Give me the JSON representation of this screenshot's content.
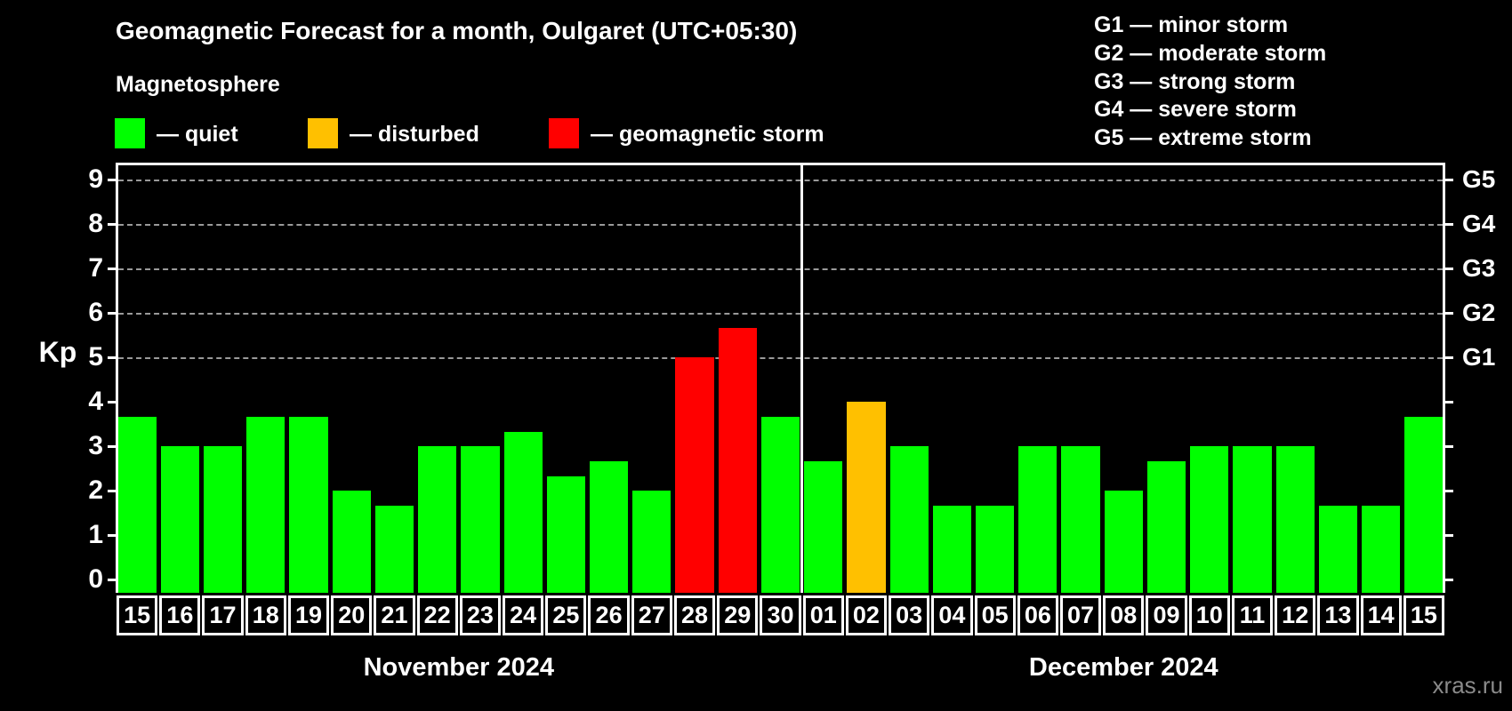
{
  "header": {
    "title": "Geomagnetic Forecast for a month, Oulgaret (UTC+05:30)",
    "subtitle": "Magnetosphere"
  },
  "legend": {
    "items": [
      {
        "name": "quiet",
        "label": "— quiet",
        "color": "#00ff00"
      },
      {
        "name": "disturbed",
        "label": "— disturbed",
        "color": "#ffc000"
      },
      {
        "name": "storm",
        "label": "— geomagnetic storm",
        "color": "#ff0000"
      }
    ]
  },
  "g_scale_legend": [
    "G1 — minor storm",
    "G2 — moderate storm",
    "G3 — strong storm",
    "G4 — severe storm",
    "G5 — extreme storm"
  ],
  "watermark": "xras.ru",
  "chart_data": {
    "type": "bar",
    "title": "Geomagnetic Forecast for a month, Oulgaret (UTC+05:30)",
    "ylabel": "Kp",
    "ylim": [
      0,
      9
    ],
    "yticks": [
      0,
      1,
      2,
      3,
      4,
      5,
      6,
      7,
      8,
      9
    ],
    "gridlines_at_kp": [
      5,
      6,
      7,
      8,
      9
    ],
    "grid": "horizontal dashed gray lines at Kp 5–9 only",
    "legend_position": "top-left swatches; G-scale list top-right",
    "right_axis": [
      {
        "kp": 5,
        "label": "G1"
      },
      {
        "kp": 6,
        "label": "G2"
      },
      {
        "kp": 7,
        "label": "G3"
      },
      {
        "kp": 8,
        "label": "G4"
      },
      {
        "kp": 9,
        "label": "G5"
      }
    ],
    "months": [
      {
        "label": "November 2024",
        "start_index": 0,
        "days": 16
      },
      {
        "label": "December 2024",
        "start_index": 16,
        "days": 15
      }
    ],
    "categories": [
      "15",
      "16",
      "17",
      "18",
      "19",
      "20",
      "21",
      "22",
      "23",
      "24",
      "25",
      "26",
      "27",
      "28",
      "29",
      "30",
      "01",
      "02",
      "03",
      "04",
      "05",
      "06",
      "07",
      "08",
      "09",
      "10",
      "11",
      "12",
      "13",
      "14",
      "15"
    ],
    "series": [
      {
        "name": "Kp forecast",
        "values": [
          3.67,
          3,
          3,
          3.67,
          3.67,
          2,
          1.67,
          3,
          3,
          3.33,
          2.33,
          2.67,
          2,
          5,
          5.67,
          3.67,
          2.67,
          4,
          3,
          1.67,
          1.67,
          3,
          3,
          2,
          2.67,
          3,
          3,
          3,
          1.67,
          1.67,
          3.67
        ],
        "statuses": [
          "quiet",
          "quiet",
          "quiet",
          "quiet",
          "quiet",
          "quiet",
          "quiet",
          "quiet",
          "quiet",
          "quiet",
          "quiet",
          "quiet",
          "quiet",
          "storm",
          "storm",
          "quiet",
          "quiet",
          "disturbed",
          "quiet",
          "quiet",
          "quiet",
          "quiet",
          "quiet",
          "quiet",
          "quiet",
          "quiet",
          "quiet",
          "quiet",
          "quiet",
          "quiet",
          "quiet"
        ]
      }
    ],
    "status_colors": {
      "quiet": "#00ff00",
      "disturbed": "#ffc000",
      "storm": "#ff0000"
    }
  }
}
